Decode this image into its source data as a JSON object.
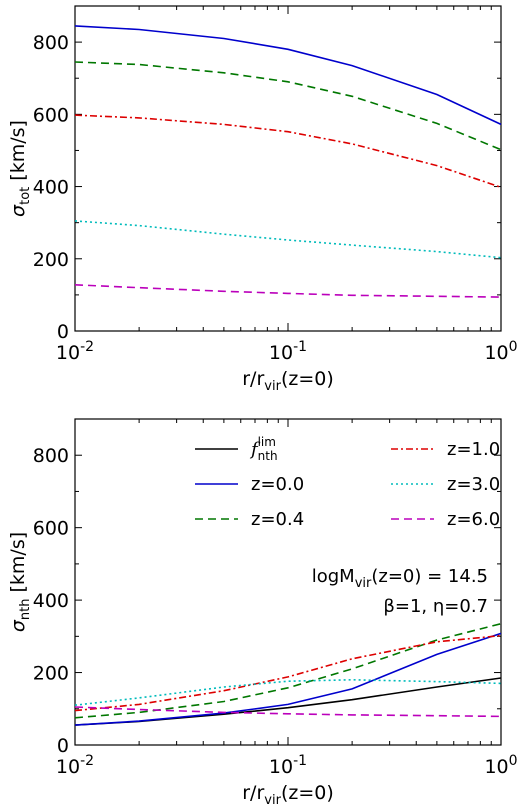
{
  "chart_data": [
    {
      "type": "line",
      "xscale": "log",
      "xlim": [
        0.01,
        1
      ],
      "ylim": [
        0,
        900
      ],
      "xlabel": "r/r_vir(z=0)",
      "ylabel": "σ_tot [km/s]",
      "xticks": [
        "10^-2",
        "10^-1",
        "10^0"
      ],
      "yticks": [
        0,
        200,
        400,
        600,
        800
      ],
      "grid": false,
      "series": [
        {
          "name": "z=0.0",
          "color": "#0000cc",
          "dash": "solid",
          "x": [
            0.01,
            0.02,
            0.05,
            0.1,
            0.2,
            0.5,
            1.0
          ],
          "y": [
            845,
            835,
            810,
            780,
            735,
            655,
            572
          ]
        },
        {
          "name": "z=0.4",
          "color": "#007700",
          "dash": "dashed",
          "x": [
            0.01,
            0.02,
            0.05,
            0.1,
            0.2,
            0.5,
            1.0
          ],
          "y": [
            745,
            738,
            715,
            690,
            650,
            575,
            502
          ]
        },
        {
          "name": "z=1.0",
          "color": "#dd0000",
          "dash": "dashdot",
          "x": [
            0.01,
            0.02,
            0.05,
            0.1,
            0.2,
            0.5,
            1.0
          ],
          "y": [
            598,
            590,
            572,
            552,
            518,
            458,
            398
          ]
        },
        {
          "name": "z=3.0",
          "color": "#00bbbb",
          "dash": "dotted",
          "x": [
            0.01,
            0.02,
            0.05,
            0.1,
            0.2,
            0.5,
            1.0
          ],
          "y": [
            305,
            292,
            268,
            252,
            238,
            220,
            203
          ]
        },
        {
          "name": "z=6.0",
          "color": "#bb00bb",
          "dash": "dashed",
          "x": [
            0.01,
            0.02,
            0.05,
            0.1,
            0.2,
            0.5,
            1.0
          ],
          "y": [
            128,
            120,
            110,
            104,
            99,
            96,
            94
          ]
        }
      ]
    },
    {
      "type": "line",
      "xscale": "log",
      "xlim": [
        0.01,
        1
      ],
      "ylim": [
        0,
        900
      ],
      "xlabel": "r/r_vir(z=0)",
      "ylabel": "σ_nth [km/s]",
      "xticks": [
        "10^-2",
        "10^-1",
        "10^0"
      ],
      "yticks": [
        0,
        200,
        400,
        600,
        800
      ],
      "grid": false,
      "legend_position": "top",
      "annotations": [
        "logM_vir(z=0) = 14.5",
        "β=1,  η=0.7"
      ],
      "series": [
        {
          "name": "f_nth^lim",
          "color": "#000000",
          "dash": "solid",
          "x": [
            0.01,
            0.02,
            0.05,
            0.1,
            0.2,
            0.5,
            1.0
          ],
          "y": [
            55,
            65,
            85,
            103,
            125,
            160,
            185
          ]
        },
        {
          "name": "z=0.0",
          "color": "#0000cc",
          "dash": "solid",
          "x": [
            0.01,
            0.02,
            0.05,
            0.1,
            0.2,
            0.5,
            1.0
          ],
          "y": [
            55,
            66,
            88,
            112,
            155,
            250,
            308
          ]
        },
        {
          "name": "z=0.4",
          "color": "#007700",
          "dash": "dashed",
          "x": [
            0.01,
            0.02,
            0.05,
            0.1,
            0.2,
            0.5,
            1.0
          ],
          "y": [
            75,
            90,
            120,
            158,
            210,
            290,
            335
          ]
        },
        {
          "name": "z=1.0",
          "color": "#dd0000",
          "dash": "dashdot",
          "x": [
            0.01,
            0.02,
            0.05,
            0.1,
            0.2,
            0.5,
            1.0
          ],
          "y": [
            95,
            112,
            150,
            188,
            238,
            285,
            302
          ]
        },
        {
          "name": "z=3.0",
          "color": "#00bbbb",
          "dash": "dotted",
          "x": [
            0.01,
            0.02,
            0.05,
            0.1,
            0.2,
            0.5,
            1.0
          ],
          "y": [
            110,
            130,
            160,
            176,
            180,
            175,
            170
          ]
        },
        {
          "name": "z=6.0",
          "color": "#bb00bb",
          "dash": "dashed",
          "x": [
            0.01,
            0.02,
            0.05,
            0.1,
            0.2,
            0.5,
            1.0
          ],
          "y": [
            105,
            98,
            90,
            86,
            83,
            81,
            79
          ]
        }
      ]
    }
  ]
}
